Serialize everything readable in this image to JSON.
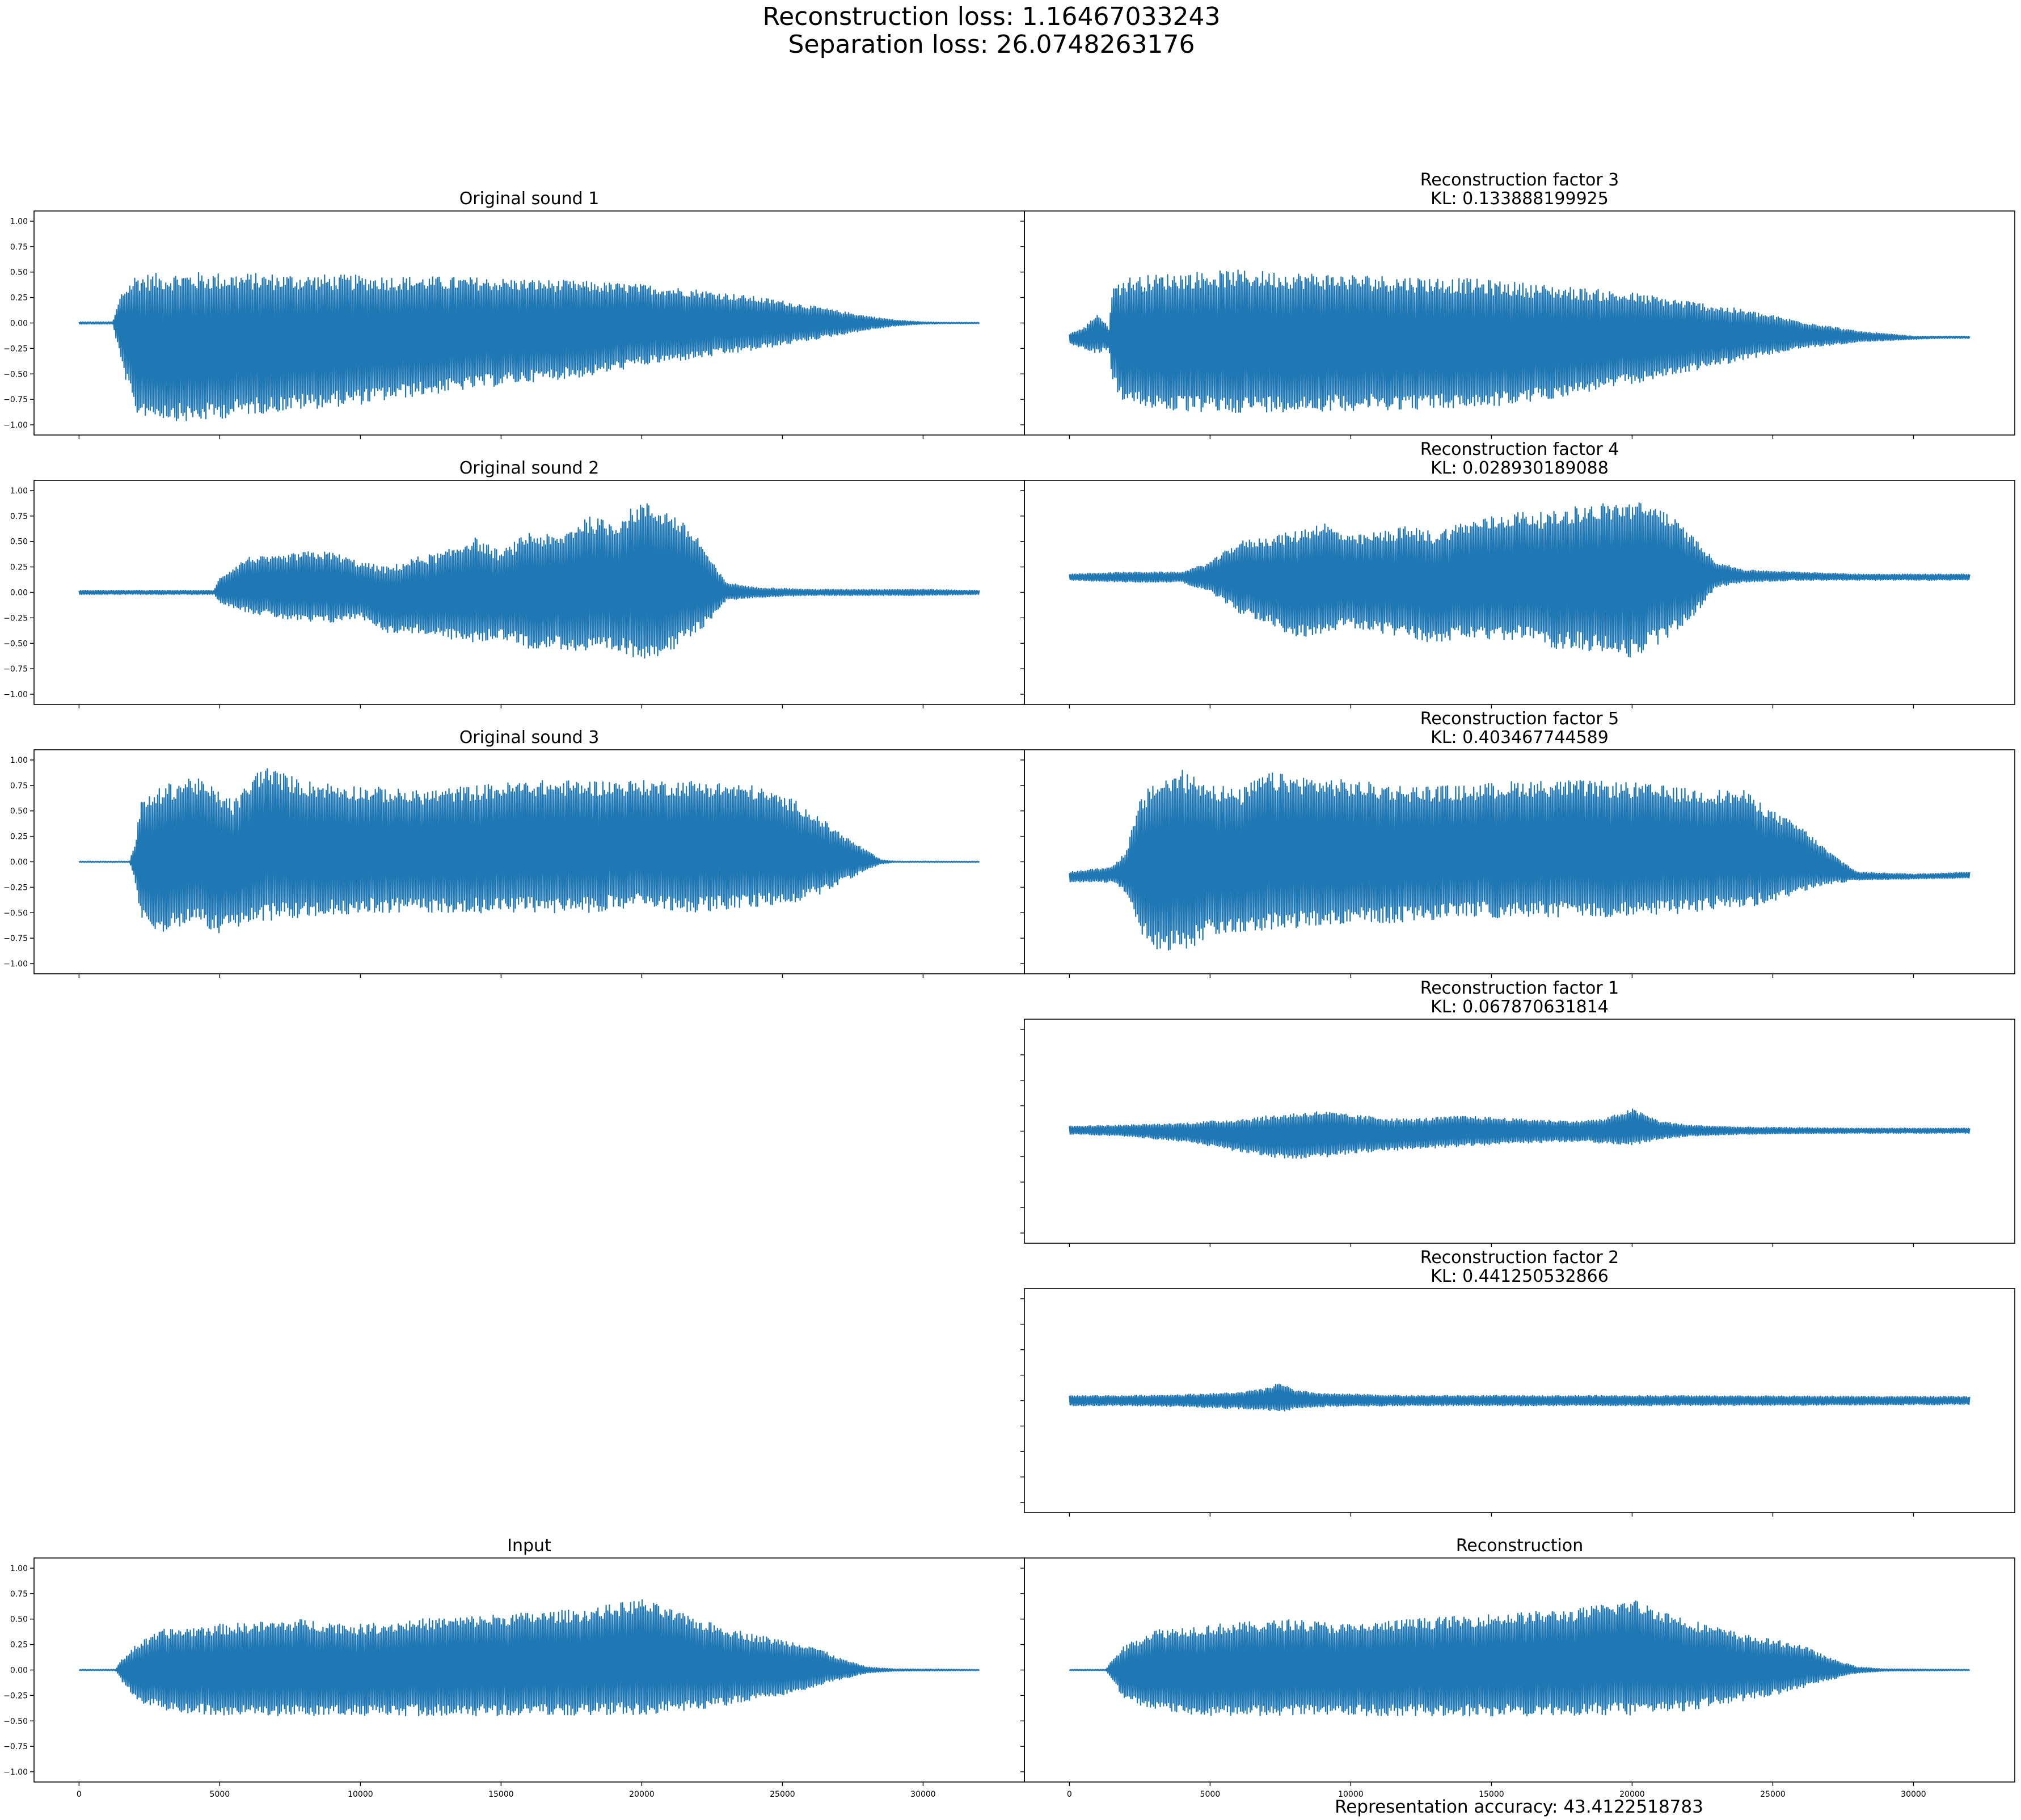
{
  "figure": {
    "suptitle_line1": "Reconstruction loss: 1.16467033243",
    "suptitle_line2": "Separation loss: 26.0748263176",
    "footer": "Representation accuracy: 43.4122518783",
    "line_color": "#1f77b4"
  },
  "chart_data": [
    {
      "id": "orig1",
      "type": "line",
      "title": [
        "Original sound 1"
      ],
      "xlim": [
        -1600,
        33600
      ],
      "ylim": [
        -1.1,
        1.1
      ],
      "yticks": [
        -1.0,
        -0.75,
        -0.5,
        -0.25,
        0.0,
        0.25,
        0.5,
        0.75,
        1.0
      ],
      "ytick_labels": [
        "−1.00",
        "−0.75",
        "−0.50",
        "−0.25",
        "0.00",
        "0.25",
        "0.50",
        "0.75",
        "1.00"
      ],
      "xticks": [
        0,
        5000,
        10000,
        15000,
        20000,
        25000,
        30000
      ],
      "envelope": {
        "x": [
          0,
          1200,
          1500,
          2000,
          4000,
          6000,
          8000,
          10000,
          12000,
          14000,
          16000,
          18000,
          20000,
          22000,
          24000,
          25000,
          26000,
          27000,
          28000,
          29000,
          30000,
          31000,
          32000
        ],
        "upper": [
          0.01,
          0.01,
          0.3,
          0.48,
          0.5,
          0.49,
          0.48,
          0.47,
          0.46,
          0.45,
          0.43,
          0.41,
          0.38,
          0.33,
          0.26,
          0.22,
          0.17,
          0.12,
          0.07,
          0.03,
          0.01,
          0.005,
          0.005
        ],
        "lower": [
          -0.01,
          -0.01,
          -0.4,
          -0.9,
          -0.98,
          -0.9,
          -0.85,
          -0.8,
          -0.72,
          -0.65,
          -0.58,
          -0.53,
          -0.42,
          -0.35,
          -0.27,
          -0.22,
          -0.17,
          -0.12,
          -0.07,
          -0.03,
          -0.01,
          -0.005,
          -0.005
        ]
      }
    },
    {
      "id": "rec3",
      "type": "line",
      "title": [
        "Reconstruction factor 3",
        "KL: 0.133888199925"
      ],
      "xlim": [
        -1600,
        33600
      ],
      "ylim": [
        -1.1,
        1.1
      ],
      "yticks": [
        -1.0,
        -0.75,
        -0.5,
        -0.25,
        0.0,
        0.25,
        0.5,
        0.75,
        1.0
      ],
      "xticks": [
        0,
        5000,
        10000,
        15000,
        20000,
        25000,
        30000
      ],
      "envelope": {
        "x": [
          0,
          500,
          1000,
          1400,
          1500,
          2000,
          4000,
          6000,
          8000,
          10000,
          12000,
          14000,
          16000,
          18000,
          20000,
          22000,
          24000,
          26000,
          28000,
          30000,
          31000,
          32000
        ],
        "upper": [
          -0.1,
          -0.05,
          0.1,
          -0.05,
          0.35,
          0.45,
          0.5,
          0.52,
          0.5,
          0.48,
          0.46,
          0.44,
          0.4,
          0.35,
          0.3,
          0.22,
          0.13,
          0.02,
          -0.08,
          -0.13,
          -0.13,
          -0.13
        ],
        "lower": [
          -0.2,
          -0.25,
          -0.3,
          -0.25,
          -0.6,
          -0.8,
          -0.88,
          -0.88,
          -0.87,
          -0.86,
          -0.85,
          -0.84,
          -0.8,
          -0.7,
          -0.6,
          -0.48,
          -0.36,
          -0.25,
          -0.19,
          -0.16,
          -0.15,
          -0.15
        ]
      }
    },
    {
      "id": "orig2",
      "type": "line",
      "title": [
        "Original sound 2"
      ],
      "xlim": [
        -1600,
        33600
      ],
      "ylim": [
        -1.1,
        1.1
      ],
      "yticks": [
        -1.0,
        -0.75,
        -0.5,
        -0.25,
        0.0,
        0.25,
        0.5,
        0.75,
        1.0
      ],
      "ytick_labels": [
        "−1.00",
        "−0.75",
        "−0.50",
        "−0.25",
        "0.00",
        "0.25",
        "0.50",
        "0.75",
        "1.00"
      ],
      "xticks": [
        0,
        5000,
        10000,
        15000,
        20000,
        25000,
        30000
      ],
      "envelope": {
        "x": [
          0,
          4800,
          5000,
          6000,
          7000,
          8000,
          9000,
          10000,
          11000,
          12000,
          13000,
          14000,
          15000,
          16000,
          17000,
          18000,
          19000,
          20000,
          21000,
          22000,
          22500,
          23000,
          24000,
          26000,
          28000,
          30000,
          32000
        ],
        "upper": [
          0.02,
          0.02,
          0.15,
          0.35,
          0.35,
          0.4,
          0.4,
          0.3,
          0.25,
          0.35,
          0.4,
          0.55,
          0.4,
          0.6,
          0.55,
          0.75,
          0.7,
          0.9,
          0.8,
          0.55,
          0.3,
          0.1,
          0.05,
          0.03,
          0.03,
          0.03,
          0.02
        ],
        "lower": [
          -0.02,
          -0.02,
          -0.1,
          -0.2,
          -0.25,
          -0.3,
          -0.3,
          -0.25,
          -0.4,
          -0.4,
          -0.45,
          -0.5,
          -0.45,
          -0.55,
          -0.55,
          -0.6,
          -0.6,
          -0.65,
          -0.6,
          -0.4,
          -0.25,
          -0.08,
          -0.05,
          -0.03,
          -0.03,
          -0.03,
          -0.02
        ]
      }
    },
    {
      "id": "rec4",
      "type": "line",
      "title": [
        "Reconstruction factor 4",
        "KL: 0.028930189088"
      ],
      "xlim": [
        -1600,
        33600
      ],
      "ylim": [
        -1.1,
        1.1
      ],
      "yticks": [
        -1.0,
        -0.75,
        -0.5,
        -0.25,
        0.0,
        0.25,
        0.5,
        0.75,
        1.0
      ],
      "xticks": [
        0,
        5000,
        10000,
        15000,
        20000,
        25000,
        30000
      ],
      "envelope": {
        "x": [
          0,
          2000,
          4000,
          5000,
          6000,
          7000,
          8000,
          9000,
          10000,
          11000,
          12000,
          13000,
          14000,
          15000,
          16000,
          17000,
          18000,
          19000,
          20000,
          21000,
          22000,
          23000,
          24000,
          26000,
          28000,
          30000,
          32000
        ],
        "upper": [
          0.18,
          0.2,
          0.2,
          0.3,
          0.5,
          0.55,
          0.6,
          0.7,
          0.55,
          0.6,
          0.65,
          0.6,
          0.7,
          0.75,
          0.8,
          0.78,
          0.85,
          0.88,
          0.9,
          0.85,
          0.6,
          0.3,
          0.22,
          0.2,
          0.18,
          0.18,
          0.18
        ],
        "lower": [
          0.12,
          0.1,
          0.1,
          0.0,
          -0.2,
          -0.3,
          -0.45,
          -0.4,
          -0.35,
          -0.4,
          -0.45,
          -0.5,
          -0.45,
          -0.5,
          -0.45,
          -0.55,
          -0.55,
          -0.6,
          -0.65,
          -0.5,
          -0.3,
          0.05,
          0.1,
          0.12,
          0.12,
          0.12,
          0.12
        ]
      }
    },
    {
      "id": "orig3",
      "type": "line",
      "title": [
        "Original sound 3"
      ],
      "xlim": [
        -1600,
        33600
      ],
      "ylim": [
        -1.1,
        1.1
      ],
      "yticks": [
        -1.0,
        -0.75,
        -0.5,
        -0.25,
        0.0,
        0.25,
        0.5,
        0.75,
        1.0
      ],
      "ytick_labels": [
        "−1.00",
        "−0.75",
        "−0.50",
        "−0.25",
        "0.00",
        "0.25",
        "0.50",
        "0.75",
        "1.00"
      ],
      "xticks": [
        0,
        5000,
        10000,
        15000,
        20000,
        25000,
        30000
      ],
      "envelope": {
        "x": [
          0,
          1800,
          2000,
          2200,
          3000,
          4000,
          5000,
          5500,
          6500,
          8000,
          10000,
          12000,
          14000,
          16000,
          18000,
          20000,
          22000,
          24000,
          25500,
          26500,
          27500,
          28500,
          29000,
          30000,
          32000
        ],
        "upper": [
          0.005,
          0.005,
          0.2,
          0.6,
          0.75,
          0.85,
          0.7,
          0.6,
          0.95,
          0.8,
          0.75,
          0.7,
          0.75,
          0.8,
          0.8,
          0.8,
          0.8,
          0.75,
          0.6,
          0.4,
          0.2,
          0.02,
          0.005,
          0.005,
          0.005
        ],
        "lower": [
          -0.005,
          -0.005,
          -0.2,
          -0.6,
          -0.7,
          -0.6,
          -0.7,
          -0.65,
          -0.6,
          -0.55,
          -0.5,
          -0.5,
          -0.5,
          -0.5,
          -0.5,
          -0.45,
          -0.5,
          -0.45,
          -0.4,
          -0.3,
          -0.15,
          -0.02,
          -0.005,
          -0.005,
          -0.005
        ]
      }
    },
    {
      "id": "rec5",
      "type": "line",
      "title": [
        "Reconstruction factor 5",
        "KL: 0.403467744589"
      ],
      "xlim": [
        -1600,
        33600
      ],
      "ylim": [
        -1.1,
        1.1
      ],
      "yticks": [
        -1.0,
        -0.75,
        -0.5,
        -0.25,
        0.0,
        0.25,
        0.5,
        0.75,
        1.0
      ],
      "xticks": [
        0,
        5000,
        10000,
        15000,
        20000,
        25000,
        30000
      ],
      "envelope": {
        "x": [
          0,
          1500,
          2000,
          2500,
          3000,
          4000,
          5000,
          6000,
          7000,
          8000,
          10000,
          12000,
          14000,
          16000,
          18000,
          20000,
          22000,
          24000,
          25000,
          26000,
          27000,
          28000,
          30000,
          32000
        ],
        "upper": [
          -0.1,
          -0.05,
          0.1,
          0.6,
          0.8,
          0.9,
          0.8,
          0.7,
          0.88,
          0.85,
          0.8,
          0.75,
          0.75,
          0.8,
          0.8,
          0.78,
          0.72,
          0.7,
          0.5,
          0.35,
          0.1,
          -0.1,
          -0.12,
          -0.1
        ],
        "lower": [
          -0.2,
          -0.2,
          -0.3,
          -0.7,
          -0.85,
          -0.9,
          -0.75,
          -0.7,
          -0.68,
          -0.65,
          -0.6,
          -0.6,
          -0.55,
          -0.55,
          -0.55,
          -0.55,
          -0.5,
          -0.45,
          -0.4,
          -0.3,
          -0.22,
          -0.18,
          -0.17,
          -0.16
        ]
      }
    },
    {
      "id": "rec1",
      "type": "line",
      "title": [
        "Reconstruction factor 1",
        "KL: 0.067870631814"
      ],
      "xlim": [
        -1600,
        33600
      ],
      "ylim": [
        -1.1,
        1.1
      ],
      "yticks": [
        -1.0,
        -0.75,
        -0.5,
        -0.25,
        0.0,
        0.25,
        0.5,
        0.75,
        1.0
      ],
      "xticks": [
        0,
        5000,
        10000,
        15000,
        20000,
        25000,
        30000
      ],
      "envelope": {
        "x": [
          0,
          2000,
          4000,
          6000,
          7000,
          8000,
          9000,
          10000,
          12000,
          14000,
          16000,
          18000,
          19000,
          20000,
          21000,
          22000,
          24000,
          28000,
          32000
        ],
        "upper": [
          0.05,
          0.06,
          0.08,
          0.12,
          0.15,
          0.18,
          0.2,
          0.16,
          0.12,
          0.15,
          0.12,
          0.1,
          0.12,
          0.22,
          0.1,
          0.06,
          0.04,
          0.03,
          0.03
        ],
        "lower": [
          -0.03,
          -0.05,
          -0.1,
          -0.2,
          -0.25,
          -0.28,
          -0.26,
          -0.22,
          -0.18,
          -0.15,
          -0.12,
          -0.1,
          -0.12,
          -0.14,
          -0.08,
          -0.05,
          -0.03,
          -0.02,
          -0.02
        ]
      }
    },
    {
      "id": "rec2",
      "type": "line",
      "title": [
        "Reconstruction factor 2",
        "KL: 0.441250532866"
      ],
      "xlim": [
        -1600,
        33600
      ],
      "ylim": [
        -1.1,
        1.1
      ],
      "yticks": [
        -1.0,
        -0.75,
        -0.5,
        -0.25,
        0.0,
        0.25,
        0.5,
        0.75,
        1.0
      ],
      "xticks": [
        0,
        5000,
        10000,
        15000,
        20000,
        25000,
        30000
      ],
      "envelope": {
        "x": [
          0,
          2000,
          4000,
          6000,
          7000,
          7500,
          8000,
          9000,
          12000,
          20000,
          32000
        ],
        "upper": [
          0.05,
          0.05,
          0.06,
          0.08,
          0.12,
          0.18,
          0.1,
          0.07,
          0.05,
          0.05,
          0.04
        ],
        "lower": [
          -0.05,
          -0.05,
          -0.06,
          -0.08,
          -0.1,
          -0.12,
          -0.08,
          -0.06,
          -0.05,
          -0.05,
          -0.04
        ]
      }
    },
    {
      "id": "input",
      "type": "line",
      "title": [
        "Input"
      ],
      "xlim": [
        -1600,
        33600
      ],
      "ylim": [
        -1.1,
        1.1
      ],
      "yticks": [
        -1.0,
        -0.75,
        -0.5,
        -0.25,
        0.0,
        0.25,
        0.5,
        0.75,
        1.0
      ],
      "ytick_labels": [
        "−1.00",
        "−0.75",
        "−0.50",
        "−0.25",
        "0.00",
        "0.25",
        "0.50",
        "0.75",
        "1.00"
      ],
      "xticks": [
        0,
        5000,
        10000,
        15000,
        20000,
        25000,
        30000
      ],
      "xtick_labels": [
        "0",
        "5000",
        "10000",
        "15000",
        "20000",
        "25000",
        "30000"
      ],
      "envelope": {
        "x": [
          0,
          1300,
          1500,
          2000,
          3000,
          5000,
          8000,
          10000,
          12000,
          15000,
          18000,
          20000,
          22000,
          24000,
          25000,
          26000,
          27000,
          28000,
          29000,
          32000
        ],
        "upper": [
          0.005,
          0.005,
          0.1,
          0.25,
          0.4,
          0.45,
          0.5,
          0.45,
          0.5,
          0.55,
          0.6,
          0.7,
          0.5,
          0.35,
          0.3,
          0.25,
          0.12,
          0.03,
          0.01,
          0.005
        ],
        "lower": [
          -0.005,
          -0.005,
          -0.1,
          -0.3,
          -0.4,
          -0.45,
          -0.45,
          -0.45,
          -0.45,
          -0.45,
          -0.45,
          -0.45,
          -0.4,
          -0.3,
          -0.25,
          -0.18,
          -0.1,
          -0.03,
          -0.01,
          -0.005
        ]
      }
    },
    {
      "id": "recon",
      "type": "line",
      "title": [
        "Reconstruction"
      ],
      "xlim": [
        -1600,
        33600
      ],
      "ylim": [
        -1.1,
        1.1
      ],
      "yticks": [
        -1.0,
        -0.75,
        -0.5,
        -0.25,
        0.0,
        0.25,
        0.5,
        0.75,
        1.0
      ],
      "xticks": [
        0,
        5000,
        10000,
        15000,
        20000,
        25000,
        30000
      ],
      "xtick_labels": [
        "0",
        "5000",
        "10000",
        "15000",
        "20000",
        "25000",
        "30000"
      ],
      "envelope": {
        "x": [
          0,
          1300,
          1500,
          2000,
          3000,
          5000,
          8000,
          10000,
          12000,
          15000,
          18000,
          20000,
          22000,
          24000,
          25000,
          26000,
          27000,
          28000,
          29000,
          32000
        ],
        "upper": [
          0.005,
          0.005,
          0.1,
          0.25,
          0.4,
          0.45,
          0.5,
          0.45,
          0.5,
          0.55,
          0.6,
          0.7,
          0.5,
          0.35,
          0.3,
          0.25,
          0.12,
          0.03,
          0.01,
          0.005
        ],
        "lower": [
          -0.005,
          -0.005,
          -0.1,
          -0.3,
          -0.4,
          -0.45,
          -0.45,
          -0.45,
          -0.45,
          -0.45,
          -0.45,
          -0.45,
          -0.4,
          -0.3,
          -0.25,
          -0.18,
          -0.1,
          -0.03,
          -0.01,
          -0.005
        ]
      }
    }
  ]
}
